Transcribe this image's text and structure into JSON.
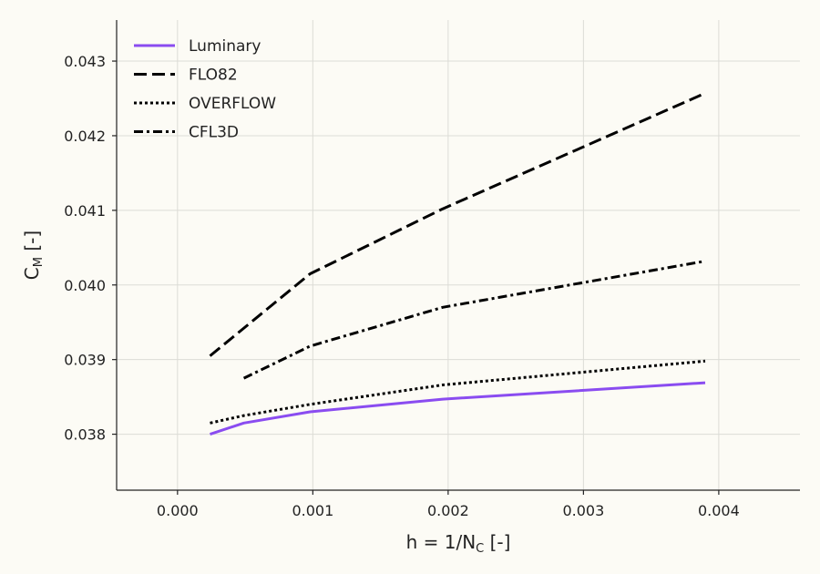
{
  "chart_data": {
    "type": "line",
    "title": "",
    "xlabel_main": "h = 1/N",
    "xlabel_sub": "C",
    "xlabel_tail": " [-]",
    "ylabel_main": "C",
    "ylabel_sub": "M",
    "ylabel_tail": " [-]",
    "xlim": [
      -0.00045,
      0.0046
    ],
    "ylim": [
      0.03725,
      0.04355
    ],
    "x_ticks": [
      0.0,
      0.001,
      0.002,
      0.003,
      0.004
    ],
    "x_tick_labels": [
      "0.000",
      "0.001",
      "0.002",
      "0.003",
      "0.004"
    ],
    "y_ticks": [
      0.038,
      0.039,
      0.04,
      0.041,
      0.042,
      0.043
    ],
    "y_tick_labels": [
      "0.038",
      "0.039",
      "0.040",
      "0.041",
      "0.042",
      "0.043"
    ],
    "grid": true,
    "legend_position": "top-left",
    "series": [
      {
        "name": "Luminary",
        "style": "solid",
        "color": "#8a4cf0",
        "x": [
          0.00024,
          0.00049,
          0.00098,
          0.00196,
          0.0039
        ],
        "y": [
          0.038,
          0.03815,
          0.0383,
          0.03847,
          0.03869
        ]
      },
      {
        "name": "FLO82",
        "style": "dashed",
        "color": "#000000",
        "x": [
          0.00024,
          0.00098,
          0.00196,
          0.0039
        ],
        "y": [
          0.03905,
          0.04015,
          0.04102,
          0.04257
        ]
      },
      {
        "name": "OVERFLOW",
        "style": "dotted",
        "color": "#000000",
        "x": [
          0.00024,
          0.00049,
          0.00098,
          0.00196,
          0.0039
        ],
        "y": [
          0.03815,
          0.03825,
          0.0384,
          0.03866,
          0.03898
        ]
      },
      {
        "name": "CFL3D",
        "style": "dashdot",
        "color": "#000000",
        "x": [
          0.00049,
          0.00098,
          0.00196,
          0.0039
        ],
        "y": [
          0.03875,
          0.03918,
          0.0397,
          0.04032
        ]
      }
    ]
  }
}
